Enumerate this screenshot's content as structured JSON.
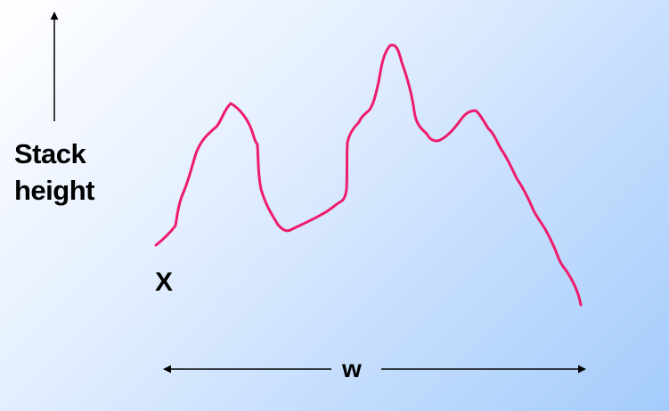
{
  "y_axis_label": {
    "line1": "Stack",
    "line2": "height"
  },
  "x_marker": "X",
  "width_label": "w",
  "colors": {
    "curve": "#ee1c6c",
    "arrows": "#000000",
    "background_start": "#ffffff",
    "background_end": "#a4ccfb"
  }
}
